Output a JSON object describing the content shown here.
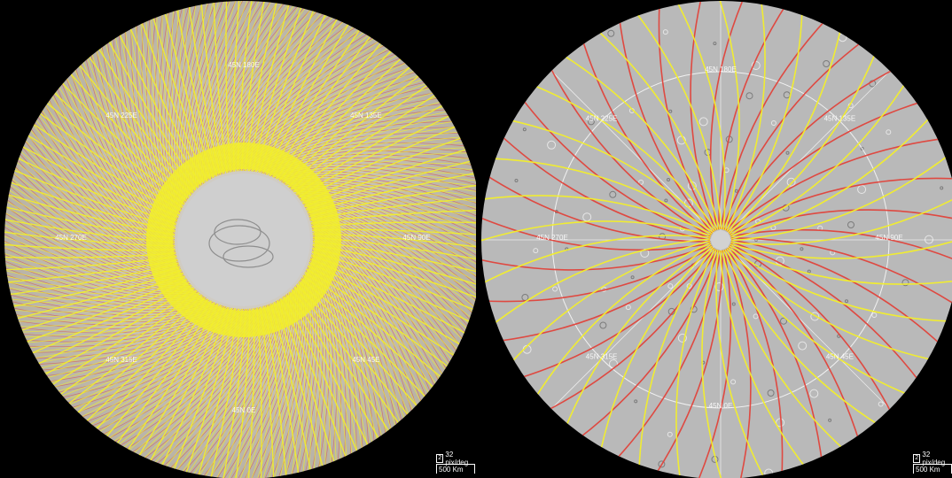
{
  "panels": [
    {
      "id": "left",
      "grid_labels": [
        "45N 180E",
        "45N 225E",
        "45N 135E",
        "45N 270E",
        "45N 90E",
        "45N 315E",
        "45N 45E",
        "45N 0E"
      ],
      "scale": {
        "zoom_level": "2",
        "resolution": "32 pix/deg",
        "distance": "500 Km"
      }
    },
    {
      "id": "right",
      "grid_labels": [
        "45N 180E",
        "45N 225E",
        "45N 135E",
        "45N 270E",
        "45N 90E",
        "45N 315E",
        "45N 45E",
        "45N 0E"
      ],
      "scale": {
        "zoom_level": "2",
        "resolution": "32 pix/deg",
        "distance": "500 Km"
      }
    }
  ],
  "colors": {
    "background": "#000000",
    "terrain": "#c7c4be",
    "track_yellow": "#f2ee2a",
    "track_red": "#e0423a",
    "grid": "#ffffff",
    "polar_gap": "#cfcfcf"
  }
}
